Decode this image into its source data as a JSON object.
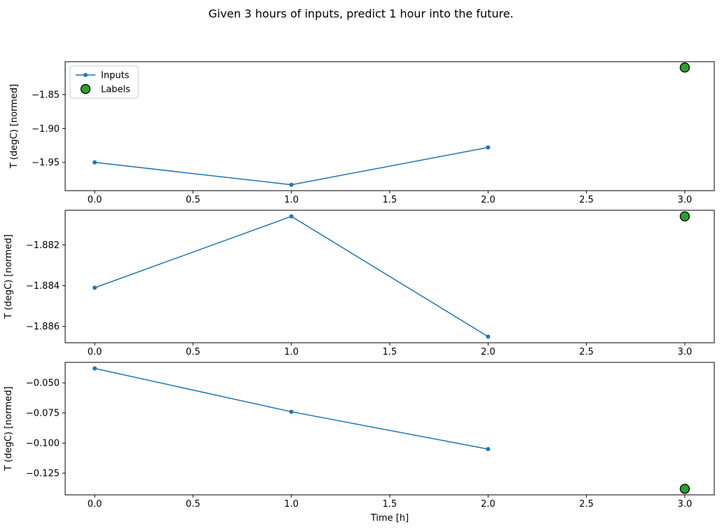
{
  "title": "Given 3 hours of inputs, predict 1 hour into the future.",
  "chart_data": {
    "type": "line",
    "xlabel": "Time [h]",
    "xlim": [
      -0.15,
      3.15
    ],
    "xticks": {
      "values": [
        0,
        0.5,
        1,
        1.5,
        2,
        2.5,
        3
      ],
      "labels": [
        "0.0",
        "0.5",
        "1.0",
        "1.5",
        "2.0",
        "2.5",
        "3.0"
      ]
    },
    "legend": {
      "position": "upper left",
      "entries": [
        {
          "label": "Inputs",
          "marker": "line-with-dot"
        },
        {
          "label": "Labels",
          "marker": "filled-circle"
        }
      ]
    },
    "colors": {
      "inputs": "#1f77b4",
      "labels": "#2ca02c",
      "labels_edge": "#000000",
      "legend_border": "#cccccc",
      "spine": "#000000"
    },
    "subplots": [
      {
        "ylabel": "T (degC) [normed]",
        "ylim": [
          -1.9917,
          -1.8014
        ],
        "yticks": {
          "values": [
            -1.85,
            -1.9,
            -1.95
          ],
          "labels": [
            "−1.85",
            "−1.90",
            "−1.95"
          ]
        },
        "inputs": {
          "x": [
            0,
            1,
            2
          ],
          "y": [
            -1.95,
            -1.983,
            -1.928
          ]
        },
        "labels": {
          "x": [
            3
          ],
          "y": [
            -1.81
          ]
        },
        "show_legend": true
      },
      {
        "ylabel": "T (degC) [normed]",
        "ylim": [
          -1.8868,
          -1.8803
        ],
        "yticks": {
          "values": [
            -1.882,
            -1.884,
            -1.886
          ],
          "labels": [
            "−1.882",
            "−1.884",
            "−1.886"
          ]
        },
        "inputs": {
          "x": [
            0,
            1,
            2
          ],
          "y": [
            -1.8841,
            -1.8806,
            -1.8865
          ]
        },
        "labels": {
          "x": [
            3
          ],
          "y": [
            -1.8806
          ]
        },
        "show_legend": false
      },
      {
        "ylabel": "T (degC) [normed]",
        "ylim": [
          -0.143,
          -0.033
        ],
        "yticks": {
          "values": [
            -0.05,
            -0.075,
            -0.1,
            -0.125
          ],
          "labels": [
            "−0.050",
            "−0.075",
            "−0.100",
            "−0.125"
          ]
        },
        "inputs": {
          "x": [
            0,
            1,
            2
          ],
          "y": [
            -0.038,
            -0.074,
            -0.105
          ]
        },
        "labels": {
          "x": [
            3
          ],
          "y": [
            -0.138
          ]
        },
        "show_legend": false
      }
    ]
  }
}
